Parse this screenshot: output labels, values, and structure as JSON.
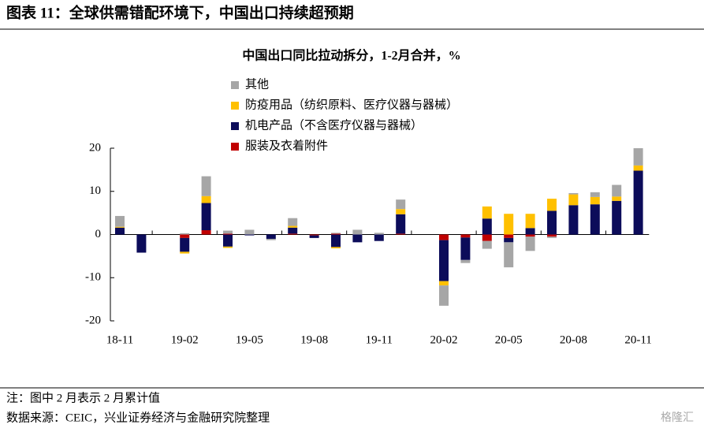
{
  "page_title": "图表 11：全球供需错配环境下，中国出口持续超预期",
  "note": "注：图中 2 月表示 2 月累计值",
  "source": "数据来源：CEIC，兴业证券经济与金融研究院整理",
  "watermark": "格隆汇",
  "chart_data": {
    "type": "stacked_bar",
    "title": "中国出口同比拉动拆分，1-2月合并，%",
    "categories": [
      "18-11",
      null,
      null,
      "19-02",
      null,
      null,
      "19-05",
      null,
      null,
      "19-08",
      null,
      null,
      "19-11",
      null,
      null,
      "20-02",
      null,
      null,
      "20-05",
      null,
      null,
      "20-08",
      null,
      null,
      "20-11"
    ],
    "series": [
      {
        "name": "其他",
        "color": "#a6a6a6",
        "values": [
          2.5,
          0,
          null,
          0.3,
          4.6,
          0.7,
          1.1,
          -0.3,
          1.8,
          0,
          0.2,
          1.1,
          0.4,
          2.2,
          null,
          -4.7,
          -0.7,
          -1.8,
          -5.8,
          -3.3,
          -0.3,
          0.3,
          1.1,
          2.7,
          4.0
        ]
      },
      {
        "name": "防疫用品（纺织原料、医疗仪器与器械）",
        "color": "#ffc000",
        "values": [
          0.2,
          0,
          null,
          -0.4,
          1.6,
          -0.3,
          0,
          0,
          0.4,
          0,
          -0.3,
          0,
          0,
          1.2,
          null,
          -1.0,
          0,
          2.8,
          4.8,
          3.3,
          2.8,
          2.5,
          1.7,
          1.0,
          1.2
        ]
      },
      {
        "name": "机电产品（不含医疗仪器与器械）",
        "color": "#0c0c5a",
        "values": [
          1.6,
          -4.2,
          null,
          -3.2,
          6.3,
          -2.8,
          -0.2,
          -1.0,
          1.4,
          -0.6,
          -2.9,
          -1.8,
          -1.5,
          4.5,
          null,
          -9.5,
          -5.2,
          3.7,
          -1.0,
          1.5,
          5.5,
          6.8,
          7.0,
          7.8,
          14.8
        ]
      },
      {
        "name": "服装及衣着附件",
        "color": "#c00000",
        "values": [
          0,
          0,
          null,
          -0.8,
          1.0,
          0.2,
          0,
          0,
          0.2,
          -0.2,
          0.2,
          0,
          0,
          0.2,
          null,
          -1.3,
          -0.7,
          -1.5,
          -0.8,
          -0.5,
          -0.5,
          0,
          0,
          0,
          0
        ]
      }
    ],
    "ylim": [
      -20,
      20
    ],
    "yticks": [
      -20,
      -10,
      0,
      10,
      20
    ],
    "legend": "upper-left"
  }
}
